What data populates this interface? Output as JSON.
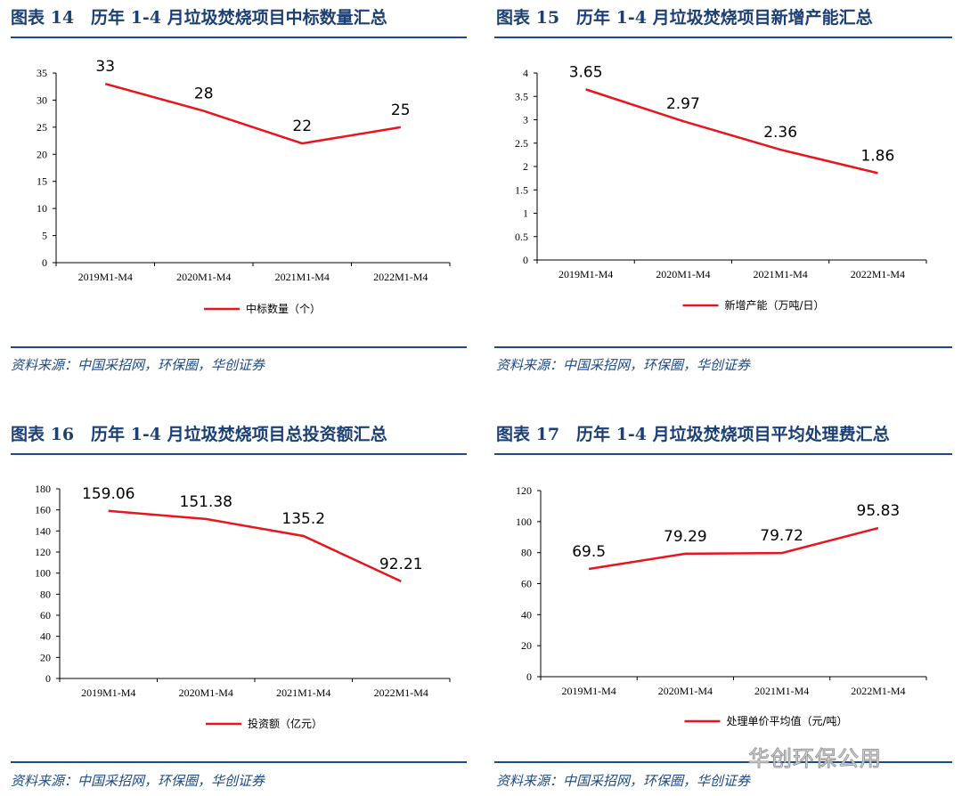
{
  "line_color": "#e8151d",
  "title_color": "#1c3f74",
  "watermark": "华创环保公用",
  "chart_data": [
    {
      "type": "line",
      "title": "图表 14　历年 1-4 月垃圾焚烧项目中标数量汇总",
      "categories": [
        "2019M1-M4",
        "2020M1-M4",
        "2021M1-M4",
        "2022M1-M4"
      ],
      "series": [
        {
          "name": "中标数量（个）",
          "values": [
            33,
            28,
            22,
            25
          ]
        }
      ],
      "data_labels": [
        "33",
        "28",
        "22",
        "25"
      ],
      "ylim": [
        0,
        35
      ],
      "yticks": [
        0,
        5,
        10,
        15,
        20,
        25,
        30,
        35
      ],
      "ytick_labels": [
        "0",
        "5",
        "10",
        "15",
        "20",
        "25",
        "30",
        "35"
      ],
      "legend": "bottom",
      "grid": false,
      "source": "资料来源：中国采招网，环保圈，华创证券"
    },
    {
      "type": "line",
      "title": "图表 15　历年 1-4 月垃圾焚烧项目新增产能汇总",
      "categories": [
        "2019M1-M4",
        "2020M1-M4",
        "2021M1-M4",
        "2022M1-M4"
      ],
      "series": [
        {
          "name": "新增产能（万吨/日）",
          "values": [
            3.65,
            2.97,
            2.36,
            1.86
          ]
        }
      ],
      "data_labels": [
        "3.65",
        "2.97",
        "2.36",
        "1.86"
      ],
      "ylim": [
        0,
        4
      ],
      "yticks": [
        0,
        0.5,
        1,
        1.5,
        2,
        2.5,
        3,
        3.5,
        4
      ],
      "ytick_labels": [
        "0",
        "0.5",
        "1",
        "1.5",
        "2",
        "2.5",
        "3",
        "3.5",
        "4"
      ],
      "legend": "bottom",
      "grid": false,
      "source": "资料来源：中国采招网，环保圈，华创证券"
    },
    {
      "type": "line",
      "title": "图表 16　历年 1-4 月垃圾焚烧项目总投资额汇总",
      "categories": [
        "2019M1-M4",
        "2020M1-M4",
        "2021M1-M4",
        "2022M1-M4"
      ],
      "series": [
        {
          "name": "投资额（亿元）",
          "values": [
            159.06,
            151.38,
            135.2,
            92.21
          ]
        }
      ],
      "data_labels": [
        "159.06",
        "151.38",
        "135.2",
        "92.21"
      ],
      "ylim": [
        0,
        180
      ],
      "yticks": [
        0,
        20,
        40,
        60,
        80,
        100,
        120,
        140,
        160,
        180
      ],
      "ytick_labels": [
        "0",
        "20",
        "40",
        "60",
        "80",
        "100",
        "120",
        "140",
        "160",
        "180"
      ],
      "legend": "bottom",
      "grid": false,
      "source": "资料来源：中国采招网，环保圈，华创证券"
    },
    {
      "type": "line",
      "title": "图表 17　历年 1-4 月垃圾焚烧项目平均处理费汇总",
      "categories": [
        "2019M1-M4",
        "2020M1-M4",
        "2021M1-M4",
        "2022M1-M4"
      ],
      "series": [
        {
          "name": "处理单价平均值（元/吨）",
          "values": [
            69.5,
            79.29,
            79.72,
            95.83
          ]
        }
      ],
      "data_labels": [
        "69.5",
        "79.29",
        "79.72",
        "95.83"
      ],
      "ylim": [
        0,
        120
      ],
      "yticks": [
        0,
        20,
        40,
        60,
        80,
        100,
        120
      ],
      "ytick_labels": [
        "0",
        "20",
        "40",
        "60",
        "80",
        "100",
        "120"
      ],
      "legend": "bottom",
      "grid": false,
      "source": "资料来源：中国采招网，环保圈，华创证券"
    }
  ]
}
